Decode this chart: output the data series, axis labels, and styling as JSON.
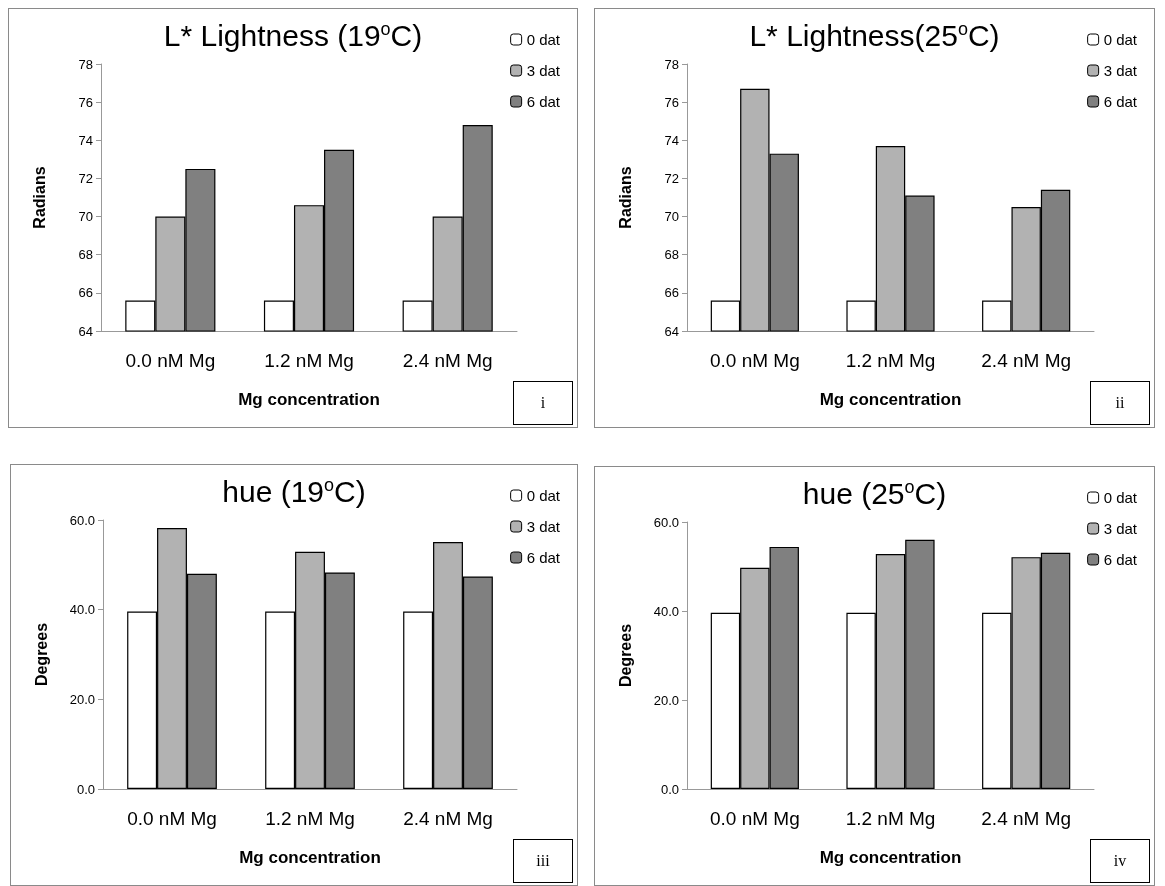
{
  "chart_data": [
    {
      "type": "bar",
      "title": "L* Lightness (19$^{o}$C)",
      "xlabel": "Mg concentration",
      "ylabel": "Radians",
      "categories": [
        "0.0 nM Mg",
        "1.2 nM Mg",
        "2.4 nM Mg"
      ],
      "series": [
        {
          "name": "0 dat",
          "color": "#ffffff",
          "values": [
            65.6,
            65.6,
            65.6
          ]
        },
        {
          "name": "3 dat",
          "color": "#b2b2b2",
          "values": [
            70.0,
            70.6,
            70.0
          ]
        },
        {
          "name": "6 dat",
          "color": "#808080",
          "values": [
            72.5,
            73.5,
            74.8
          ]
        }
      ],
      "ylim": [
        64,
        78
      ],
      "yticks": [
        64,
        66,
        68,
        70,
        72,
        74,
        76,
        78
      ],
      "grid": false,
      "legend": "top right",
      "annotations": [
        "i"
      ]
    },
    {
      "type": "bar",
      "title": "L* Lightness(25$^{o}$C)",
      "xlabel": "Mg concentration",
      "ylabel": "Radians",
      "categories": [
        "0.0 nM Mg",
        "1.2 nM Mg",
        "2.4 nM Mg"
      ],
      "series": [
        {
          "name": "0 dat",
          "color": "#ffffff",
          "values": [
            65.6,
            65.6,
            65.6
          ]
        },
        {
          "name": "3 dat",
          "color": "#b2b2b2",
          "values": [
            76.7,
            73.7,
            70.5
          ]
        },
        {
          "name": "6 dat",
          "color": "#808080",
          "values": [
            73.3,
            71.1,
            71.4
          ]
        }
      ],
      "ylim": [
        64,
        78
      ],
      "yticks": [
        64,
        66,
        68,
        70,
        72,
        74,
        76,
        78
      ],
      "grid": false,
      "legend": "top right",
      "annotations": [
        "ii"
      ]
    },
    {
      "type": "bar",
      "title": "hue (19$^{o}$C)",
      "xlabel": "Mg concentration",
      "ylabel": "Degrees",
      "categories": [
        "0.0 nM Mg",
        "1.2 nM Mg",
        "2.4 nM Mg"
      ],
      "series": [
        {
          "name": "0 dat",
          "color": "#ffffff",
          "values": [
            39.6,
            39.6,
            39.6
          ]
        },
        {
          "name": "3 dat",
          "color": "#b2b2b2",
          "values": [
            58.2,
            52.9,
            55.1
          ]
        },
        {
          "name": "6 dat",
          "color": "#808080",
          "values": [
            48.0,
            48.3,
            47.4
          ]
        }
      ],
      "ylim": [
        0,
        60
      ],
      "yticks": [
        {
          "value": 0,
          "label": "0.0"
        },
        {
          "value": 20,
          "label": "20.0"
        },
        {
          "value": 40,
          "label": "40.0"
        },
        {
          "value": 60,
          "label": "60.0"
        }
      ],
      "grid": false,
      "legend": "top right",
      "annotations": [
        "iii"
      ]
    },
    {
      "type": "bar",
      "title": "hue (25$^{o}$C)",
      "xlabel": "Mg concentration",
      "ylabel": "Degrees",
      "categories": [
        "0.0 nM Mg",
        "1.2 nM Mg",
        "2.4 nM Mg"
      ],
      "series": [
        {
          "name": "0 dat",
          "color": "#ffffff",
          "values": [
            39.6,
            39.6,
            39.6
          ]
        },
        {
          "name": "3 dat",
          "color": "#b2b2b2",
          "values": [
            49.7,
            52.8,
            52.1
          ]
        },
        {
          "name": "6 dat",
          "color": "#808080",
          "values": [
            54.4,
            56.0,
            53.1
          ]
        }
      ],
      "ylim": [
        0,
        60
      ],
      "yticks": [
        {
          "value": 0,
          "label": "0.0"
        },
        {
          "value": 20,
          "label": "20.0"
        },
        {
          "value": 40,
          "label": "40.0"
        },
        {
          "value": 60,
          "label": "60.0"
        }
      ],
      "grid": false,
      "legend": "top right",
      "annotations": [
        "iv"
      ]
    }
  ]
}
